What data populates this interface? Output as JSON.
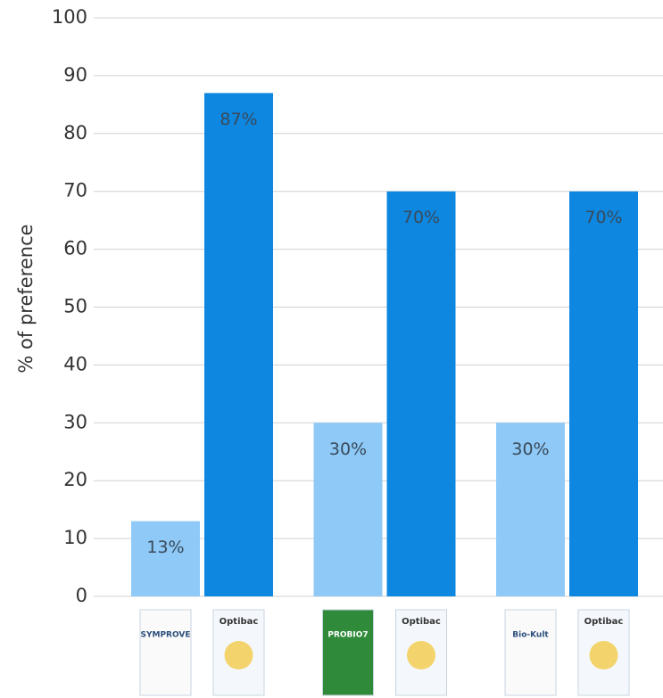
{
  "chart_data": {
    "type": "bar",
    "y_label": "% of preference",
    "categories": [
      "SYMPROVE",
      "PROBIO7",
      "Bio-Kult"
    ],
    "series": [
      {
        "color": "#8ec9f7",
        "values": [
          13,
          30,
          30
        ],
        "value_labels": [
          "13%",
          "30%",
          "30%"
        ]
      },
      {
        "name": "Optibac",
        "color": "#0d87e0",
        "values": [
          87,
          70,
          70
        ],
        "value_labels": [
          "87%",
          "70%",
          "70%"
        ]
      }
    ],
    "ylim": [
      0,
      100
    ],
    "yticks": [
      0,
      10,
      20,
      30,
      40,
      50,
      60,
      70,
      80,
      90,
      100
    ],
    "grid": true
  }
}
